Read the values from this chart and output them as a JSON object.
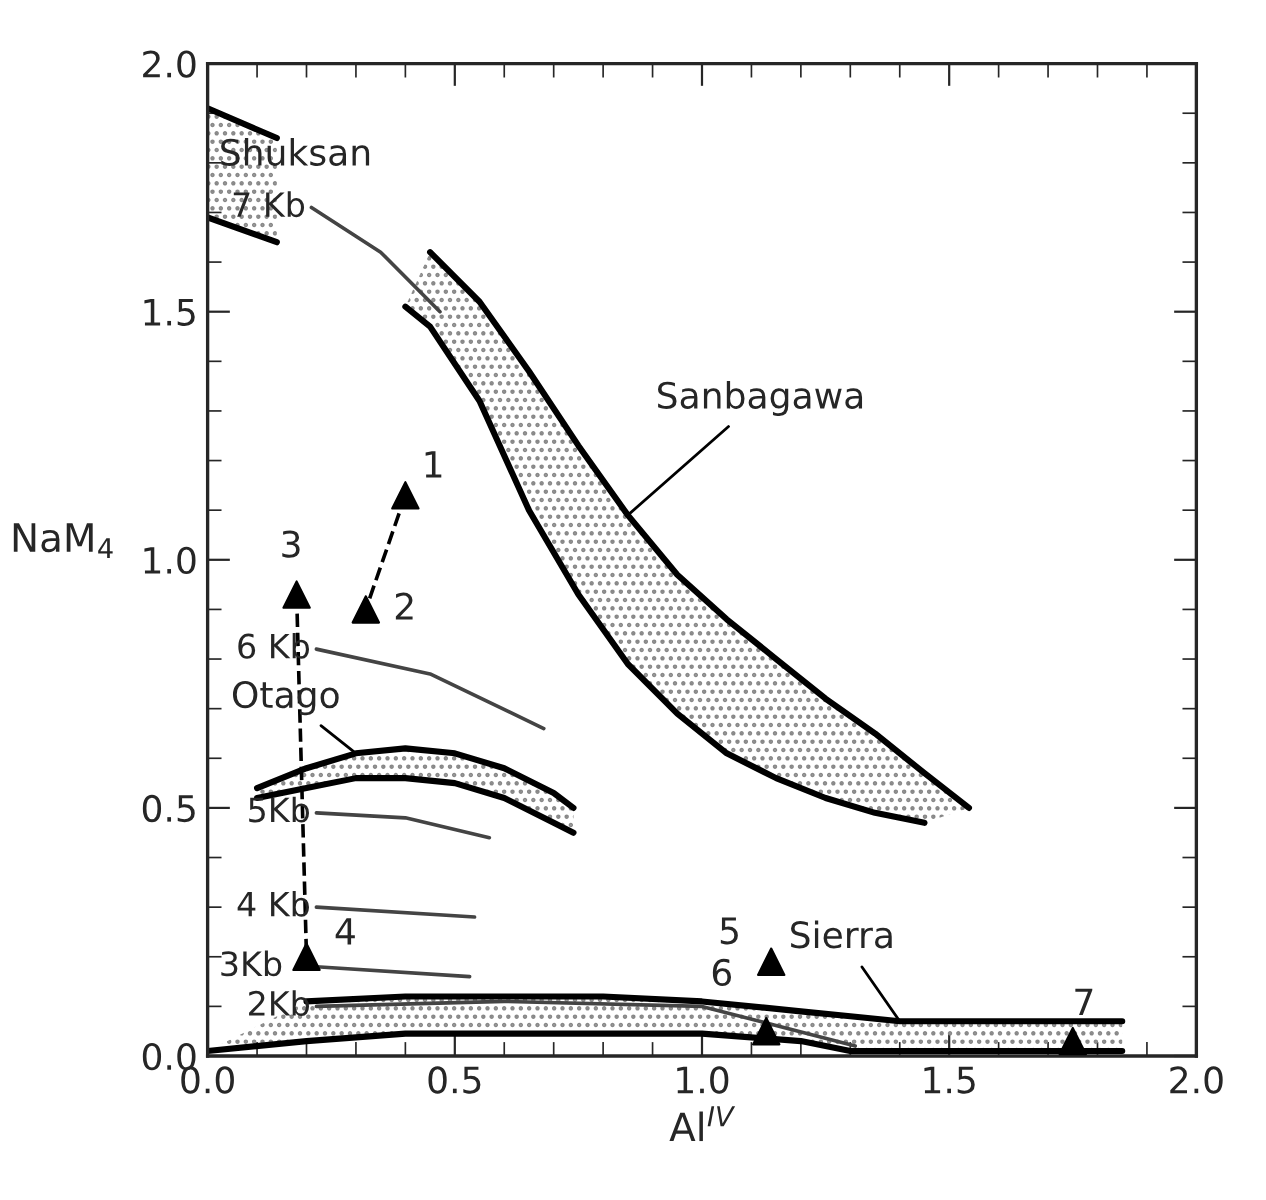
{
  "chart_data": {
    "type": "scatter",
    "xlabel": "Al$^{IV}$",
    "ylabel": "NaM$_{4}$",
    "xlim": [
      0,
      2.0
    ],
    "ylim": [
      0,
      2.0
    ],
    "xticks": [
      {
        "value": 0,
        "label": "0.0"
      },
      {
        "value": 0.5,
        "label": "0.5"
      },
      {
        "value": 1.0,
        "label": "1.0"
      },
      {
        "value": 1.5,
        "label": "1.5"
      },
      {
        "value": 2.0,
        "label": "2.0"
      }
    ],
    "yticks": [
      {
        "value": 0,
        "label": "0.0"
      },
      {
        "value": 0.5,
        "label": "0.5"
      },
      {
        "value": 1.0,
        "label": "1.0"
      },
      {
        "value": 1.5,
        "label": "1.5"
      },
      {
        "value": 2.0,
        "label": "2.0"
      }
    ],
    "grid": false,
    "legend": false,
    "series": [
      {
        "type": "line",
        "name": "Shuksan",
        "color": "#000000",
        "x": [
          0.0,
          0.14
        ],
        "values": [
          1.91,
          1.85
        ]
      },
      {
        "type": "line",
        "color": "#000000",
        "x": [
          0.0,
          0.14
        ],
        "values": [
          1.69,
          1.64
        ]
      },
      {
        "type": "line",
        "name": "Sanbagawa",
        "color": "#000000",
        "x": [
          0.45,
          0.55,
          0.65,
          0.75,
          0.85,
          0.95,
          1.05,
          1.15,
          1.25,
          1.35,
          1.45,
          1.54
        ],
        "values": [
          1.62,
          1.52,
          1.38,
          1.23,
          1.09,
          0.97,
          0.88,
          0.8,
          0.72,
          0.65,
          0.57,
          0.5
        ]
      },
      {
        "type": "line",
        "color": "#000000",
        "x": [
          0.4,
          0.45,
          0.55,
          0.65,
          0.75,
          0.85,
          0.95,
          1.05,
          1.15,
          1.25,
          1.35,
          1.45
        ],
        "values": [
          1.51,
          1.47,
          1.32,
          1.1,
          0.93,
          0.79,
          0.69,
          0.61,
          0.56,
          0.52,
          0.49,
          0.47
        ]
      },
      {
        "type": "line",
        "name": "Otago",
        "color": "#000000",
        "x": [
          0.1,
          0.2,
          0.3,
          0.4,
          0.5,
          0.6,
          0.7,
          0.74
        ],
        "values": [
          0.54,
          0.58,
          0.61,
          0.62,
          0.61,
          0.58,
          0.53,
          0.5
        ]
      },
      {
        "type": "line",
        "color": "#000000",
        "x": [
          0.1,
          0.2,
          0.3,
          0.4,
          0.5,
          0.6,
          0.7,
          0.74
        ],
        "values": [
          0.52,
          0.54,
          0.56,
          0.56,
          0.55,
          0.52,
          0.47,
          0.45
        ]
      },
      {
        "type": "line",
        "name": "Sierra",
        "color": "#000000",
        "x": [
          0.2,
          0.4,
          0.6,
          0.8,
          1.0,
          1.2,
          1.3,
          1.4,
          1.6,
          1.85
        ],
        "values": [
          0.11,
          0.12,
          0.12,
          0.12,
          0.11,
          0.09,
          0.08,
          0.07,
          0.07,
          0.07
        ]
      },
      {
        "type": "line",
        "color": "#000000",
        "x": [
          0.0,
          0.2,
          0.4,
          0.6,
          0.8,
          1.0,
          1.2,
          1.3,
          1.4,
          1.6,
          1.85
        ],
        "values": [
          0.01,
          0.03,
          0.045,
          0.045,
          0.045,
          0.045,
          0.03,
          0.01,
          0.01,
          0.01,
          0.01
        ]
      },
      {
        "type": "line",
        "name": "7 Kb",
        "color": "#444444",
        "x": [
          0.21,
          0.35,
          0.47
        ],
        "values": [
          1.71,
          1.62,
          1.5
        ]
      },
      {
        "type": "line",
        "name": "6 Kb",
        "color": "#444444",
        "x": [
          0.22,
          0.45,
          0.68
        ],
        "values": [
          0.82,
          0.77,
          0.66
        ]
      },
      {
        "type": "line",
        "name": "5Kb",
        "color": "#444444",
        "x": [
          0.22,
          0.4,
          0.57
        ],
        "values": [
          0.49,
          0.48,
          0.44
        ]
      },
      {
        "type": "line",
        "name": "4 Kb",
        "color": "#444444",
        "x": [
          0.22,
          0.54
        ],
        "values": [
          0.3,
          0.28
        ]
      },
      {
        "type": "line",
        "name": "3Kb",
        "color": "#444444",
        "x": [
          0.22,
          0.53
        ],
        "values": [
          0.18,
          0.16
        ]
      },
      {
        "type": "line",
        "name": "2Kb",
        "color": "#444444",
        "x": [
          0.22,
          0.6,
          1.0,
          1.31
        ],
        "values": [
          0.1,
          0.11,
          0.1,
          0.02
        ]
      },
      {
        "type": "line",
        "line_style": "dashed",
        "color": "#000000",
        "x": [
          0.4,
          0.32
        ],
        "values": [
          1.13,
          0.9
        ]
      },
      {
        "type": "line",
        "line_style": "dashed",
        "color": "#000000",
        "x": [
          0.18,
          0.2
        ],
        "values": [
          0.93,
          0.2
        ]
      },
      {
        "marker": "triangle",
        "color": "#000000",
        "x": [
          0.4,
          0.32,
          0.18,
          0.2,
          1.14,
          1.13,
          1.75
        ],
        "values": [
          1.13,
          0.9,
          0.93,
          0.2,
          0.19,
          0.05,
          0.03
        ]
      }
    ],
    "annotations": [
      {
        "text": "1",
        "x": 0.4,
        "y": 1.13
      },
      {
        "text": "2",
        "x": 0.32,
        "y": 0.9
      },
      {
        "text": "3",
        "x": 0.18,
        "y": 0.93
      },
      {
        "text": "4",
        "x": 0.2,
        "y": 0.2
      },
      {
        "text": "5",
        "x": 1.14,
        "y": 0.19
      },
      {
        "text": "6",
        "x": 1.13,
        "y": 0.05
      },
      {
        "text": "7",
        "x": 1.75,
        "y": 0.03
      }
    ]
  }
}
